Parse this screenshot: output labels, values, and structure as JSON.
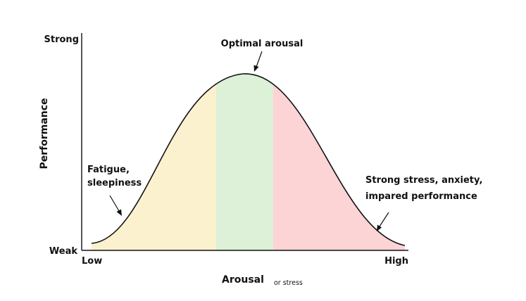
{
  "axes": {
    "y_label": "Performance",
    "y_top": "Strong",
    "y_bottom": "Weak",
    "x_label": "Arousal",
    "x_label_note": "or stress",
    "x_left": "Low",
    "x_right": "High"
  },
  "annotations": {
    "peak": "Optimal arousal",
    "left_line1": "Fatigue,",
    "left_line2": "sleepiness",
    "right_line1": "Strong stress, anxiety,",
    "right_line2": "impared performance"
  },
  "zones": [
    {
      "name": "low",
      "color": "#fcf1cf"
    },
    {
      "name": "optimal",
      "color": "#ddf0d8"
    },
    {
      "name": "high",
      "color": "#fcd4d6"
    }
  ],
  "colors": {
    "curve": "#111111",
    "axis": "#111111",
    "note": "#e0211d"
  }
}
